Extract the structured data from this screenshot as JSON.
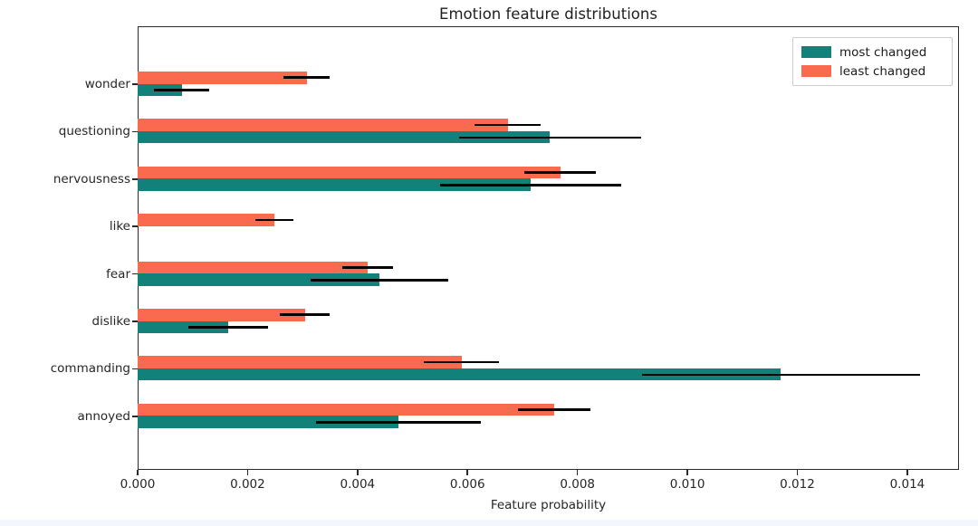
{
  "chart_data": {
    "type": "bar",
    "orientation": "horizontal",
    "title": "Emotion feature distributions",
    "xlabel": "Feature probability",
    "ylabel": "",
    "xlim": [
      0,
      0.01494
    ],
    "grid": false,
    "background": "#ffffff",
    "axis_color": "#2a2a2a",
    "error_bar_color": "#000000",
    "categories": [
      "wonder",
      "questioning",
      "nervousness",
      "like",
      "fear",
      "dislike",
      "commanding",
      "annoyed"
    ],
    "series": [
      {
        "name": "most changed",
        "color": "#12817a",
        "values": [
          0.0008,
          0.0075,
          0.00715,
          0,
          0.0044,
          0.00165,
          0.0117,
          0.00475
        ],
        "errors": [
          0.0005,
          0.00166,
          0.00165,
          0,
          0.00125,
          0.00073,
          0.00253,
          0.0015
        ]
      },
      {
        "name": "least changed",
        "color": "#fa6a4e",
        "values": [
          0.00308,
          0.00673,
          0.00769,
          0.00249,
          0.00418,
          0.00304,
          0.00589,
          0.00757
        ],
        "errors": [
          0.00042,
          0.0006,
          0.00065,
          0.00035,
          0.00046,
          0.00046,
          0.00068,
          0.00066
        ]
      }
    ],
    "xticks": {
      "values": [
        0,
        0.002,
        0.004,
        0.006,
        0.008,
        0.01,
        0.012,
        0.014
      ],
      "labels": [
        "0.000",
        "0.002",
        "0.004",
        "0.006",
        "0.008",
        "0.010",
        "0.012",
        "0.014"
      ]
    },
    "legend_position": "upper right"
  }
}
